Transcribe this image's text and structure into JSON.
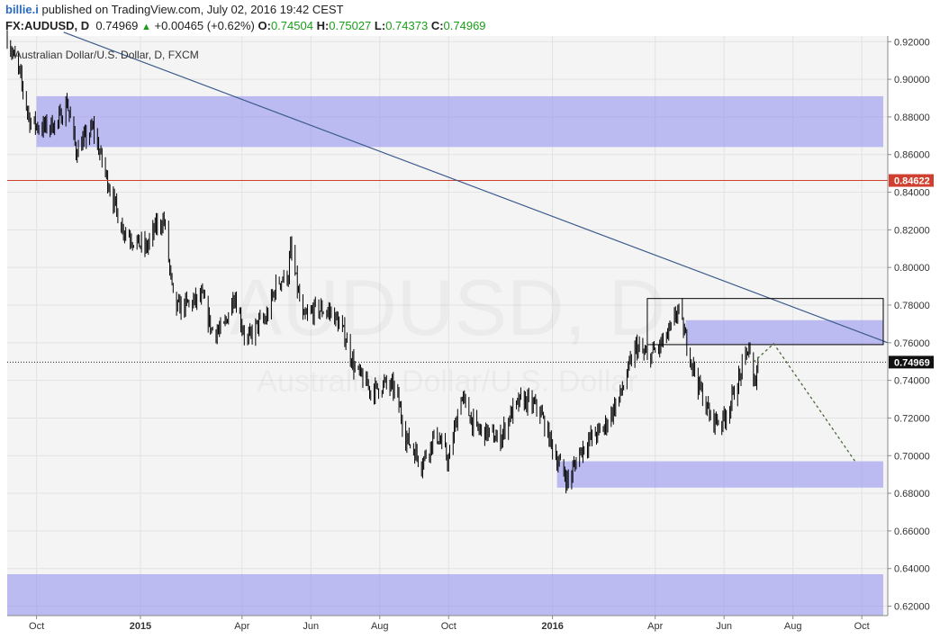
{
  "header": {
    "author": "billie.i",
    "published": "published on TradingView.com, July 02, 2016 19:42 CEST",
    "symbol": "FX:AUDUSD, D",
    "last": "0.74969",
    "up_arrow": "▲",
    "change": "+0.00465 (+0.62%)",
    "o_label": "O:",
    "o_value": "0.74504",
    "h_label": "H:",
    "h_value": "0.75027",
    "l_label": "L:",
    "l_value": "0.74373",
    "c_label": "C:",
    "c_value": "0.74969"
  },
  "chart_data": {
    "type": "candlestick",
    "title": "Australian Dollar/U.S. Dollar, D, FXCM",
    "watermark_symbol": "AUDUSD, D",
    "watermark_name": "Australian Dollar/U.S. Dollar",
    "x_range": [
      "2014-09-05",
      "2016-10-24"
    ],
    "y_range": [
      0.615,
      0.923
    ],
    "price_ticks": [
      "0.92000",
      "0.90000",
      "0.88000",
      "0.86000",
      "0.84000",
      "0.82000",
      "0.80000",
      "0.78000",
      "0.76000",
      "0.74000",
      "0.72000",
      "0.70000",
      "0.68000",
      "0.66000",
      "0.64000",
      "0.62000"
    ],
    "time_ticks": [
      {
        "date": "2014-10-01",
        "label": "Oct",
        "bold": false
      },
      {
        "date": "2015-01-01",
        "label": "2015",
        "bold": true
      },
      {
        "date": "2015-04-01",
        "label": "Apr",
        "bold": false
      },
      {
        "date": "2015-06-01",
        "label": "Jun",
        "bold": false
      },
      {
        "date": "2015-08-01",
        "label": "Aug",
        "bold": false
      },
      {
        "date": "2015-10-01",
        "label": "Oct",
        "bold": false
      },
      {
        "date": "2016-01-01",
        "label": "2016",
        "bold": true
      },
      {
        "date": "2016-04-01",
        "label": "Apr",
        "bold": false
      },
      {
        "date": "2016-06-01",
        "label": "Jun",
        "bold": false
      },
      {
        "date": "2016-08-01",
        "label": "Aug",
        "bold": false
      },
      {
        "date": "2016-10-01",
        "label": "Oct",
        "bold": false
      }
    ],
    "price_path": [
      [
        "2014-09-05",
        0.922
      ],
      [
        "2014-09-15",
        0.905
      ],
      [
        "2014-09-25",
        0.878
      ],
      [
        "2014-10-05",
        0.874
      ],
      [
        "2014-10-20",
        0.877
      ],
      [
        "2014-10-28",
        0.888
      ],
      [
        "2014-11-05",
        0.862
      ],
      [
        "2014-11-20",
        0.874
      ],
      [
        "2014-12-01",
        0.85
      ],
      [
        "2014-12-15",
        0.822
      ],
      [
        "2014-12-25",
        0.815
      ],
      [
        "2015-01-06",
        0.81
      ],
      [
        "2015-01-15",
        0.822
      ],
      [
        "2015-01-22",
        0.825
      ],
      [
        "2015-01-31",
        0.778
      ],
      [
        "2015-02-10",
        0.78
      ],
      [
        "2015-02-25",
        0.784
      ],
      [
        "2015-03-05",
        0.767
      ],
      [
        "2015-03-15",
        0.766
      ],
      [
        "2015-03-25",
        0.786
      ],
      [
        "2015-04-05",
        0.76
      ],
      [
        "2015-04-15",
        0.77
      ],
      [
        "2015-04-22",
        0.772
      ],
      [
        "2015-05-02",
        0.792
      ],
      [
        "2015-05-12",
        0.796
      ],
      [
        "2015-05-14",
        0.81
      ],
      [
        "2015-05-25",
        0.772
      ],
      [
        "2015-06-05",
        0.778
      ],
      [
        "2015-06-20",
        0.776
      ],
      [
        "2015-07-01",
        0.764
      ],
      [
        "2015-07-10",
        0.746
      ],
      [
        "2015-07-25",
        0.734
      ],
      [
        "2015-08-05",
        0.738
      ],
      [
        "2015-08-15",
        0.735
      ],
      [
        "2015-08-24",
        0.71
      ],
      [
        "2015-09-07",
        0.696
      ],
      [
        "2015-09-20",
        0.712
      ],
      [
        "2015-10-01",
        0.697
      ],
      [
        "2015-10-12",
        0.732
      ],
      [
        "2015-10-25",
        0.714
      ],
      [
        "2015-11-05",
        0.712
      ],
      [
        "2015-11-15",
        0.708
      ],
      [
        "2015-11-25",
        0.722
      ],
      [
        "2015-12-05",
        0.73
      ],
      [
        "2015-12-20",
        0.725
      ],
      [
        "2016-01-05",
        0.698
      ],
      [
        "2016-01-15",
        0.686
      ],
      [
        "2016-01-25",
        0.702
      ],
      [
        "2016-02-05",
        0.71
      ],
      [
        "2016-02-15",
        0.714
      ],
      [
        "2016-03-01",
        0.732
      ],
      [
        "2016-03-15",
        0.758
      ],
      [
        "2016-03-25",
        0.752
      ],
      [
        "2016-04-05",
        0.758
      ],
      [
        "2016-04-15",
        0.767
      ],
      [
        "2016-04-21",
        0.778
      ],
      [
        "2016-04-28",
        0.762
      ],
      [
        "2016-05-08",
        0.74
      ],
      [
        "2016-05-20",
        0.72
      ],
      [
        "2016-05-30",
        0.718
      ],
      [
        "2016-06-05",
        0.725
      ],
      [
        "2016-06-15",
        0.742
      ],
      [
        "2016-06-23",
        0.758
      ],
      [
        "2016-06-27",
        0.735
      ],
      [
        "2016-07-01",
        0.7497
      ]
    ],
    "current_price": {
      "value": 0.74969,
      "label": "0.74969"
    },
    "horizontal_line": {
      "value": 0.84622,
      "label": "0.84622",
      "color": "#d04030"
    },
    "trendline": {
      "from": [
        "2014-10-25",
        0.925
      ],
      "to": [
        "2016-10-24",
        0.76
      ],
      "color": "#3a5a8c"
    },
    "zones": [
      {
        "from": "2014-10-01",
        "to": "2016-10-20",
        "y_top": 0.891,
        "y_bottom": 0.864,
        "color": "#8c8cf0"
      },
      {
        "from": "2016-04-28",
        "to": "2016-10-20",
        "y_top": 0.772,
        "y_bottom": 0.759,
        "color": "#8c8cf0"
      },
      {
        "from": "2016-01-05",
        "to": "2016-10-20",
        "y_top": 0.697,
        "y_bottom": 0.683,
        "color": "#8c8cf0"
      },
      {
        "from": "2014-09-05",
        "to": "2016-10-20",
        "y_top": 0.637,
        "y_bottom": 0.615,
        "color": "#8c8cf0"
      }
    ],
    "rectangle": {
      "from": "2016-03-25",
      "to": "2016-10-20",
      "y_top": 0.7835,
      "y_bottom": 0.759,
      "color": "#000000"
    },
    "projection": {
      "points": [
        [
          "2016-06-27",
          0.7497
        ],
        [
          "2016-07-15",
          0.7595
        ],
        [
          "2016-09-25",
          0.697
        ]
      ],
      "color": "#4a6a3a"
    },
    "grid": true,
    "colors": {
      "candle": "#000000",
      "grid": "#e2e2e2",
      "background": "#f4f4f4"
    }
  }
}
